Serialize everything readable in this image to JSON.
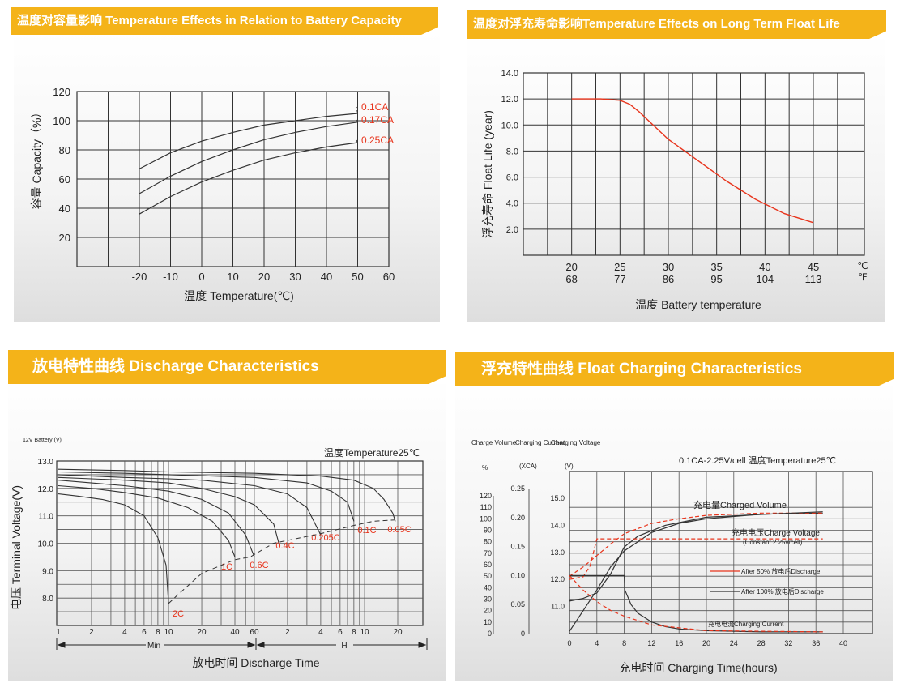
{
  "colors": {
    "accent": "#f4b319",
    "red": "#e8341c",
    "line": "#333333"
  },
  "chart_data": [
    {
      "type": "line",
      "title": "温度对容量影响 Temperature Effects in Relation to Battery Capacity",
      "xlabel": "温度  Temperature(℃)",
      "ylabel": "容量 Capacity（%）",
      "xlim": [
        -40,
        60
      ],
      "ylim": [
        0,
        120
      ],
      "x_ticks": [
        "-20",
        "-10",
        "0",
        "10",
        "20",
        "30",
        "40",
        "50",
        "60"
      ],
      "y_ticks": [
        "20",
        "40",
        "60",
        "80",
        "100",
        "120"
      ],
      "series": [
        {
          "name": "0.1CA",
          "x": [
            -20,
            -10,
            0,
            10,
            20,
            30,
            40,
            50,
            55
          ],
          "y": [
            67,
            78,
            86,
            92,
            97,
            100,
            103,
            105,
            106
          ]
        },
        {
          "name": "0.17CA",
          "x": [
            -20,
            -10,
            0,
            10,
            20,
            30,
            40,
            50,
            55
          ],
          "y": [
            50,
            62,
            72,
            80,
            87,
            92,
            96,
            99,
            100
          ]
        },
        {
          "name": "0.25CA",
          "x": [
            -20,
            -10,
            0,
            10,
            20,
            30,
            40,
            50,
            55
          ],
          "y": [
            36,
            48,
            58,
            66,
            73,
            78,
            82,
            85,
            86
          ]
        }
      ]
    },
    {
      "type": "line",
      "title": "温度对浮充寿命影响Temperature Effects on Long Term Float Life",
      "xlabel": "温度  Battery temperature",
      "ylabel": "浮充寿命  Float Life (year)",
      "x_unit_c": "℃",
      "x_unit_f": "℉",
      "xlim": [
        15,
        45
      ],
      "ylim": [
        0,
        14
      ],
      "x_ticks_c": [
        "20",
        "25",
        "30",
        "35",
        "40",
        "45"
      ],
      "x_ticks_f": [
        "68",
        "77",
        "86",
        "95",
        "104",
        "113"
      ],
      "y_ticks": [
        "2.0",
        "4.0",
        "6.0",
        "8.0",
        "10.0",
        "12.0",
        "14.0"
      ],
      "series": [
        {
          "name": "",
          "x": [
            20,
            23,
            25,
            26,
            27,
            28,
            30,
            33,
            36,
            39,
            42,
            45
          ],
          "y": [
            12,
            12,
            11.9,
            11.6,
            11,
            10.3,
            8.9,
            7.3,
            5.7,
            4.3,
            3.2,
            2.5
          ]
        }
      ]
    },
    {
      "type": "line",
      "title": "放电特性曲线 Discharge Characteristics",
      "battery_label": "12V Battery (V)",
      "temp_label": "温度Temperature25℃",
      "xlabel": "放电时间 Discharge Time",
      "ylabel": "电压 Terminal Voltage(V)",
      "min_label": "Min",
      "h_label": "H",
      "x_ticks": [
        "1",
        "2",
        "4",
        "6",
        "8",
        "10",
        "20",
        "40",
        "60",
        "2",
        "4",
        "6",
        "8",
        "10",
        "20"
      ],
      "y_ticks": [
        "8.0",
        "9.0",
        "10.0",
        "11.0",
        "12.0",
        "13.0"
      ],
      "ylim": [
        7.0,
        13.0
      ],
      "series": [
        {
          "name": "2C",
          "x": [
            1,
            1.5,
            2.5,
            4,
            6,
            8,
            9.5,
            10
          ],
          "y": [
            11.8,
            11.72,
            11.6,
            11.4,
            11.0,
            10.2,
            9.2,
            7.8
          ]
        },
        {
          "name": "1C",
          "x": [
            1,
            2,
            4,
            8,
            15,
            25,
            35,
            40
          ],
          "y": [
            12.1,
            12.0,
            11.85,
            11.65,
            11.3,
            10.8,
            10.1,
            9.5
          ]
        },
        {
          "name": "0.6C",
          "x": [
            1,
            2,
            4,
            10,
            20,
            35,
            50,
            60
          ],
          "y": [
            12.3,
            12.2,
            12.1,
            11.9,
            11.6,
            11.1,
            10.3,
            9.5
          ]
        },
        {
          "name": "0.4C",
          "x": [
            1,
            2,
            4,
            10,
            20,
            40,
            60,
            90,
            100
          ],
          "y": [
            12.4,
            12.35,
            12.3,
            12.2,
            12.0,
            11.7,
            11.4,
            10.7,
            10.0
          ]
        },
        {
          "name": "0.205C",
          "x": [
            1,
            2,
            4,
            10,
            20,
            60,
            120,
            180,
            240
          ],
          "y": [
            12.5,
            12.45,
            12.4,
            12.35,
            12.3,
            12.1,
            11.8,
            11.3,
            10.3
          ]
        },
        {
          "name": "0.1C",
          "x": [
            1,
            4,
            10,
            60,
            180,
            300,
            420,
            480
          ],
          "y": [
            12.6,
            12.55,
            12.5,
            12.4,
            12.2,
            11.9,
            11.5,
            10.8
          ]
        },
        {
          "name": "0.05C",
          "x": [
            1,
            4,
            10,
            60,
            240,
            480,
            720,
            900,
            1080,
            1140
          ],
          "y": [
            12.7,
            12.65,
            12.6,
            12.55,
            12.45,
            12.3,
            12.0,
            11.6,
            11.1,
            10.8
          ]
        }
      ],
      "final_voltage": {
        "x": [
          10,
          12,
          20,
          40,
          55,
          90,
          240,
          480,
          720,
          1140
        ],
        "y": [
          7.8,
          8.1,
          8.9,
          9.4,
          9.5,
          10.0,
          10.35,
          10.65,
          10.8,
          10.85
        ]
      }
    },
    {
      "type": "line",
      "title": "浮充特性曲线 Float Charging Characteristics",
      "condition": "0.1CA-2.25V/cell   温度Temperature25℃",
      "xlabel": "充电时间  Charging Time(hours)",
      "col1_label": "Charge Volume",
      "col1_unit": "%",
      "col2_label": "Charging Current",
      "col2_unit": "(XCA)",
      "col3_label": "Charging Voltage",
      "col3_unit": "(V)",
      "x_ticks": [
        "0",
        "4",
        "8",
        "12",
        "16",
        "20",
        "24",
        "28",
        "32",
        "36",
        "40"
      ],
      "volume_ticks": [
        "0",
        "10",
        "20",
        "30",
        "40",
        "50",
        "60",
        "70",
        "80",
        "90",
        "100",
        "110",
        "120"
      ],
      "current_ticks": [
        "0",
        "0.05",
        "0.10",
        "0.15",
        "0.20",
        "0.25"
      ],
      "voltage_ticks": [
        "11.0",
        "12.0",
        "13.0",
        "14.0",
        "15.0"
      ],
      "annotations": {
        "charged_volume": "充电量Charged Volume",
        "charge_voltage": "充电电压Charge Voltage",
        "constant": "(Constant 2.25v/cell)",
        "legend_50": "After 50%  放电后Discharge",
        "legend_100": "After 100%  放电后Discharge",
        "charging_current": "充电电流Charging Current"
      },
      "series": [
        {
          "name": "Charged Volume (after 100%)",
          "x": [
            0,
            2,
            4,
            6,
            8,
            12,
            16,
            20,
            28,
            37
          ],
          "y": [
            2,
            20,
            38,
            58,
            72,
            88,
            96,
            100,
            104,
            105
          ]
        },
        {
          "name": "Charged Volume (after 50%)",
          "x": [
            0,
            2,
            4,
            6,
            8,
            12,
            16,
            20,
            28,
            37
          ],
          "y": [
            50,
            58,
            68,
            78,
            87,
            96,
            100,
            103,
            105,
            105
          ]
        },
        {
          "name": "Charge Voltage (after 100%)",
          "x": [
            0,
            2,
            4,
            6,
            8,
            10,
            14,
            20,
            28,
            37
          ],
          "y": [
            11.2,
            11.3,
            11.5,
            12.2,
            13.2,
            13.6,
            14.0,
            14.3,
            14.4,
            14.5
          ]
        },
        {
          "name": "Charge Voltage (after 50%)",
          "x": [
            0,
            2,
            3,
            3.5,
            4,
            8,
            37
          ],
          "y": [
            12.0,
            12.1,
            12.5,
            13.0,
            13.5,
            13.5,
            13.5
          ]
        },
        {
          "name": "Charging Current (after 100%)",
          "x": [
            0,
            8,
            8.1,
            9,
            10,
            12,
            14,
            16,
            20,
            28,
            37
          ],
          "y": [
            0.1,
            0.1,
            0.075,
            0.05,
            0.035,
            0.02,
            0.012,
            0.008,
            0.005,
            0.003,
            0.003
          ]
        },
        {
          "name": "Charging Current (after 50%)",
          "x": [
            0,
            2,
            4,
            6,
            8,
            12,
            20,
            37
          ],
          "y": [
            0.1,
            0.075,
            0.055,
            0.04,
            0.03,
            0.015,
            0.005,
            0.003
          ]
        }
      ]
    }
  ]
}
